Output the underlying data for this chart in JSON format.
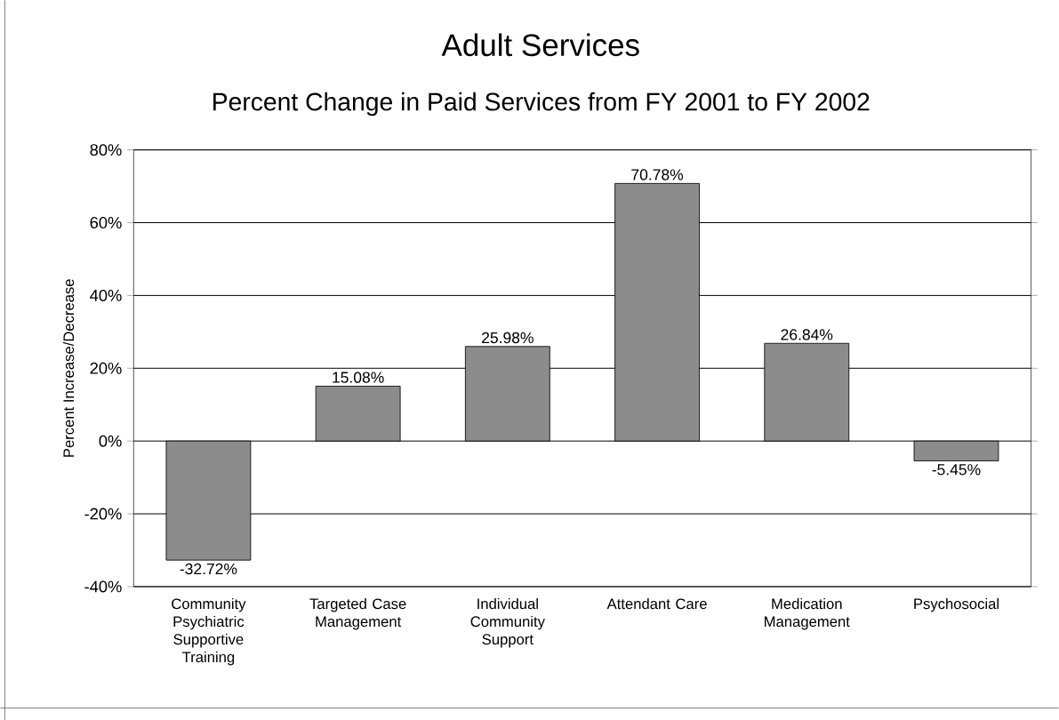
{
  "chart_data": {
    "type": "bar",
    "title": "Adult Services",
    "subtitle": "Percent Change in Paid Services from FY 2001 to FY 2002",
    "ylabel": "Percent Increase/Decrease",
    "categories": [
      "Community Psychiatric Supportive Training",
      "Targeted Case Management",
      "Individual Community Support",
      "Attendant Care",
      "Medication Management",
      "Psychosocial"
    ],
    "values": [
      -32.72,
      15.08,
      25.98,
      70.78,
      26.84,
      -5.45
    ],
    "value_labels": [
      "-32.72%",
      "15.08%",
      "25.98%",
      "70.78%",
      "26.84%",
      "-5.45%"
    ],
    "color": "#8c8c8c",
    "ylim": [
      -40,
      80
    ],
    "yticks": [
      {
        "value": -40,
        "label": "-40%"
      },
      {
        "value": -20,
        "label": "-20%"
      },
      {
        "value": 0,
        "label": "0%"
      },
      {
        "value": 20,
        "label": "20%"
      },
      {
        "value": 40,
        "label": "40%"
      },
      {
        "value": 60,
        "label": "60%"
      },
      {
        "value": 80,
        "label": "80%"
      }
    ],
    "grid": "y"
  }
}
